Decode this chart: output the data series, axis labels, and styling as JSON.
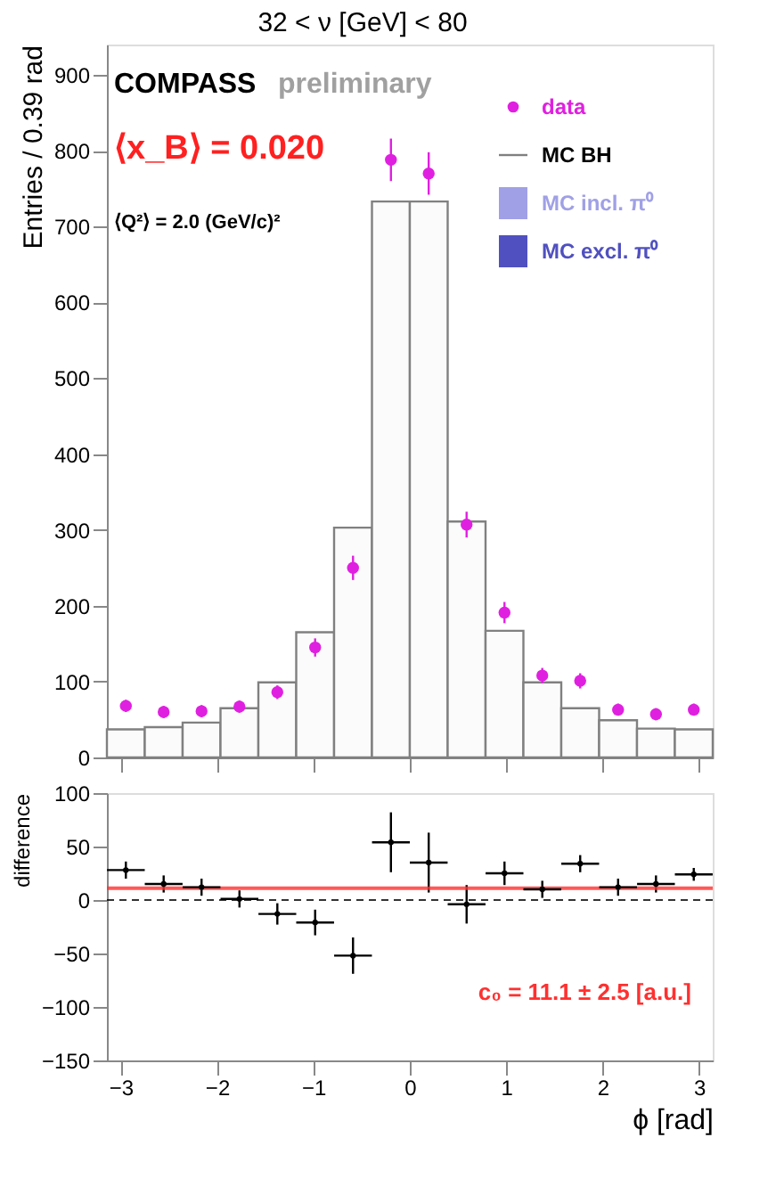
{
  "chart_data": [
    {
      "type": "scatter",
      "title": "32 < ν [GeV] < 80",
      "ylabel": "Entries / 0.39 rad",
      "xlim": [
        -3.1416,
        3.1416
      ],
      "xticks": [
        -3,
        -2,
        -1,
        0,
        1,
        2,
        3
      ],
      "ylim": [
        0,
        940
      ],
      "yticks": [
        0,
        100,
        200,
        300,
        400,
        500,
        600,
        700,
        800,
        900
      ],
      "tick_labels": "y",
      "grid": false,
      "legend": "top right",
      "annotations": [
        "COMPASS",
        "preliminary",
        "⟨x_B⟩ = 0.020",
        "⟨Q²⟩ = 2.0 (GeV/c)²"
      ],
      "series": [
        {
          "name": "MC BH",
          "type": "histogram",
          "color": "#808080",
          "bins": [
            -3.1416,
            -2.7489,
            -2.3562,
            -1.9635,
            -1.5708,
            -1.1781,
            -0.7854,
            -0.3927,
            0,
            0.3927,
            0.7854,
            1.1781,
            1.5708,
            1.9635,
            2.3562,
            2.7489,
            3.1416
          ],
          "values": [
            37,
            40,
            46,
            65,
            99,
            165,
            303,
            733,
            733,
            311,
            167,
            99,
            65,
            49,
            38,
            37
          ]
        },
        {
          "name": "MC incl. π⁰",
          "type": "histogram",
          "color": "#a0a0e6"
        },
        {
          "name": "MC excl. π⁰",
          "type": "histogram",
          "color": "#5050c0"
        },
        {
          "name": "data",
          "type": "scatter",
          "color": "#e020e0",
          "marker": "circle",
          "x": [
            -2.945,
            -2.553,
            -2.16,
            -1.767,
            -1.374,
            -0.982,
            -0.589,
            -0.196,
            0.196,
            0.589,
            0.982,
            1.374,
            1.767,
            2.16,
            2.553,
            2.945
          ],
          "values": [
            68,
            60,
            61,
            67,
            86,
            145,
            250,
            788,
            770,
            307,
            191,
            108,
            101,
            63,
            57,
            63
          ],
          "errors": [
            8,
            8,
            8,
            8,
            9,
            12,
            16,
            28,
            28,
            17,
            14,
            10,
            10,
            8,
            8,
            8
          ]
        }
      ]
    },
    {
      "type": "scatter",
      "ylabel": "difference",
      "xlabel": "ϕ [rad]",
      "xlim": [
        -3.1416,
        3.1416
      ],
      "xticks": [
        -3,
        -2,
        -1,
        0,
        1,
        2,
        3
      ],
      "ylim": [
        -150,
        100
      ],
      "yticks": [
        -150,
        -100,
        -50,
        0,
        50,
        100
      ],
      "grid": false,
      "marker": "circle",
      "x": [
        -2.945,
        -2.553,
        -2.16,
        -1.767,
        -1.374,
        -0.982,
        -0.589,
        -0.196,
        0.196,
        0.589,
        0.982,
        1.374,
        1.767,
        2.16,
        2.553,
        2.945
      ],
      "series": [
        {
          "color": "#000000",
          "values": [
            28,
            15,
            12,
            1,
            -13,
            -21,
            -52,
            54,
            35,
            -4,
            25,
            10,
            34,
            12,
            15,
            24
          ],
          "errors": [
            8,
            8,
            8,
            8,
            10,
            12,
            17,
            28,
            28,
            18,
            11,
            8,
            8,
            8,
            8,
            6
          ],
          "xerrors": [
            0.196,
            0.196,
            0.196,
            0.196,
            0.196,
            0.196,
            0.196,
            0.196,
            0.196,
            0.196,
            0.196,
            0.196,
            0.196,
            0.196,
            0.196,
            0.196
          ]
        }
      ],
      "ref_lines": [
        {
          "axis": "y",
          "value": 11.1,
          "label": "c₀ = 11.1 ± 2.5 [a.u.]",
          "color": "#ff3030",
          "line_style": "solid"
        },
        {
          "axis": "y",
          "value": 0,
          "label": null,
          "color": "#000000",
          "line_style": "dashed"
        }
      ]
    }
  ]
}
